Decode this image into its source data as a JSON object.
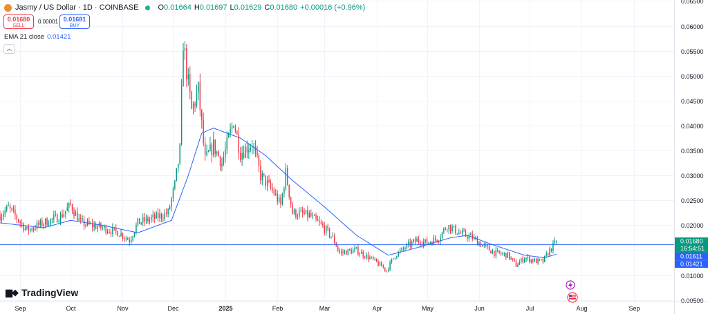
{
  "header": {
    "symbol": "Jasmy / US Dollar · 1D · COINBASE",
    "open_label": "O",
    "open": "0.01664",
    "high_label": "H",
    "high": "0.01697",
    "low_label": "L",
    "low": "0.01629",
    "close_label": "C",
    "close": "0.01680",
    "change": "+0.00016 (+0.96%)"
  },
  "trade": {
    "sell_price": "0.01680",
    "sell_label": "SELL",
    "spread": "0.00001",
    "buy_price": "0.01681",
    "buy_label": "BUY"
  },
  "indicator": {
    "label": "EMA 21 close",
    "value": "0.01421"
  },
  "collapse_icon": "chevron-up-icon",
  "brand": {
    "name": "TradingView",
    "icon": "tradingview-logo-icon"
  },
  "colors": {
    "up": "#089981",
    "down": "#f23645",
    "ema": "#2962ff",
    "price_line": "#2962ff",
    "grid": "#f0f3fa"
  },
  "chart_data": {
    "type": "candlestick",
    "y_ticks": [
      "0.06500",
      "0.06000",
      "0.05500",
      "0.05000",
      "0.04500",
      "0.04000",
      "0.03500",
      "0.03000",
      "0.02500",
      "0.02000",
      "0.01500",
      "0.01000",
      "0.00500"
    ],
    "ylim": [
      0.0047,
      0.0652
    ],
    "x_ticks": [
      "Sep",
      "Oct",
      "Nov",
      "Dec",
      "2025",
      "Feb",
      "Mar",
      "Apr",
      "May",
      "Jun",
      "Jul",
      "Aug",
      "Sep"
    ],
    "x_tick_dates": [
      "2024-09-01",
      "2024-10-01",
      "2024-11-01",
      "2024-12-01",
      "2025-01-01",
      "2025-02-01",
      "2025-03-01",
      "2025-04-01",
      "2025-05-01",
      "2025-06-01",
      "2025-07-01",
      "2025-08-01",
      "2025-09-01"
    ],
    "xlim": [
      "2024-08-20",
      "2025-09-25"
    ],
    "close_key_points": [
      {
        "date": "2024-08-20",
        "close": 0.022
      },
      {
        "date": "2024-08-25",
        "close": 0.0235
      },
      {
        "date": "2024-09-05",
        "close": 0.019
      },
      {
        "date": "2024-09-15",
        "close": 0.0205
      },
      {
        "date": "2024-09-25",
        "close": 0.0218
      },
      {
        "date": "2024-10-01",
        "close": 0.024
      },
      {
        "date": "2024-10-07",
        "close": 0.0205
      },
      {
        "date": "2024-10-20",
        "close": 0.0195
      },
      {
        "date": "2024-10-30",
        "close": 0.0185
      },
      {
        "date": "2024-11-05",
        "close": 0.017
      },
      {
        "date": "2024-11-10",
        "close": 0.0205
      },
      {
        "date": "2024-11-20",
        "close": 0.0215
      },
      {
        "date": "2024-11-28",
        "close": 0.0225
      },
      {
        "date": "2024-12-02",
        "close": 0.028
      },
      {
        "date": "2024-12-05",
        "close": 0.035
      },
      {
        "date": "2024-12-07",
        "close": 0.057
      },
      {
        "date": "2024-12-09",
        "close": 0.051
      },
      {
        "date": "2024-12-12",
        "close": 0.043
      },
      {
        "date": "2024-12-16",
        "close": 0.047
      },
      {
        "date": "2024-12-20",
        "close": 0.033
      },
      {
        "date": "2024-12-25",
        "close": 0.036
      },
      {
        "date": "2024-12-30",
        "close": 0.0325
      },
      {
        "date": "2025-01-06",
        "close": 0.041
      },
      {
        "date": "2025-01-10",
        "close": 0.0345
      },
      {
        "date": "2025-01-17",
        "close": 0.0365
      },
      {
        "date": "2025-01-22",
        "close": 0.03
      },
      {
        "date": "2025-01-30",
        "close": 0.0265
      },
      {
        "date": "2025-02-03",
        "close": 0.024
      },
      {
        "date": "2025-02-06",
        "close": 0.0305
      },
      {
        "date": "2025-02-10",
        "close": 0.0225
      },
      {
        "date": "2025-02-20",
        "close": 0.022
      },
      {
        "date": "2025-02-27",
        "close": 0.02
      },
      {
        "date": "2025-03-02",
        "close": 0.019
      },
      {
        "date": "2025-03-06",
        "close": 0.0175
      },
      {
        "date": "2025-03-10",
        "close": 0.0145
      },
      {
        "date": "2025-03-20",
        "close": 0.015
      },
      {
        "date": "2025-03-30",
        "close": 0.013
      },
      {
        "date": "2025-04-07",
        "close": 0.011
      },
      {
        "date": "2025-04-12",
        "close": 0.014
      },
      {
        "date": "2025-04-20",
        "close": 0.016
      },
      {
        "date": "2025-04-25",
        "close": 0.017
      },
      {
        "date": "2025-05-01",
        "close": 0.0165
      },
      {
        "date": "2025-05-08",
        "close": 0.0175
      },
      {
        "date": "2025-05-13",
        "close": 0.02
      },
      {
        "date": "2025-05-20",
        "close": 0.0185
      },
      {
        "date": "2025-05-28",
        "close": 0.0175
      },
      {
        "date": "2025-06-03",
        "close": 0.016
      },
      {
        "date": "2025-06-10",
        "close": 0.0145
      },
      {
        "date": "2025-06-18",
        "close": 0.014
      },
      {
        "date": "2025-06-23",
        "close": 0.012
      },
      {
        "date": "2025-06-28",
        "close": 0.0135
      },
      {
        "date": "2025-07-05",
        "close": 0.0128
      },
      {
        "date": "2025-07-09",
        "close": 0.0128
      },
      {
        "date": "2025-07-13",
        "close": 0.015
      },
      {
        "date": "2025-07-17",
        "close": 0.0168
      }
    ],
    "ema": {
      "name": "EMA 21 close",
      "key_points": [
        {
          "date": "2024-08-20",
          "value": 0.0205
        },
        {
          "date": "2024-09-15",
          "value": 0.0195
        },
        {
          "date": "2024-10-01",
          "value": 0.021
        },
        {
          "date": "2024-10-20",
          "value": 0.02
        },
        {
          "date": "2024-11-10",
          "value": 0.0185
        },
        {
          "date": "2024-11-30",
          "value": 0.021
        },
        {
          "date": "2024-12-10",
          "value": 0.03
        },
        {
          "date": "2024-12-18",
          "value": 0.0385
        },
        {
          "date": "2024-12-25",
          "value": 0.0395
        },
        {
          "date": "2025-01-10",
          "value": 0.0375
        },
        {
          "date": "2025-01-25",
          "value": 0.034
        },
        {
          "date": "2025-02-10",
          "value": 0.029
        },
        {
          "date": "2025-02-28",
          "value": 0.024
        },
        {
          "date": "2025-03-20",
          "value": 0.018
        },
        {
          "date": "2025-04-08",
          "value": 0.014
        },
        {
          "date": "2025-04-25",
          "value": 0.0155
        },
        {
          "date": "2025-05-15",
          "value": 0.0175
        },
        {
          "date": "2025-05-25",
          "value": 0.018
        },
        {
          "date": "2025-06-10",
          "value": 0.016
        },
        {
          "date": "2025-06-28",
          "value": 0.014
        },
        {
          "date": "2025-07-10",
          "value": 0.0135
        },
        {
          "date": "2025-07-17",
          "value": 0.0142
        }
      ]
    },
    "horizontal_line": 0.01611,
    "price_labels": [
      {
        "value": 0.0168,
        "text": "0.01680",
        "sub": "16:54:51",
        "color": "#089981"
      },
      {
        "value": 0.01611,
        "text": "0.01611",
        "color": "#2962ff"
      },
      {
        "value": 0.01421,
        "text": "0.01421",
        "color": "#2962ff"
      }
    ]
  }
}
